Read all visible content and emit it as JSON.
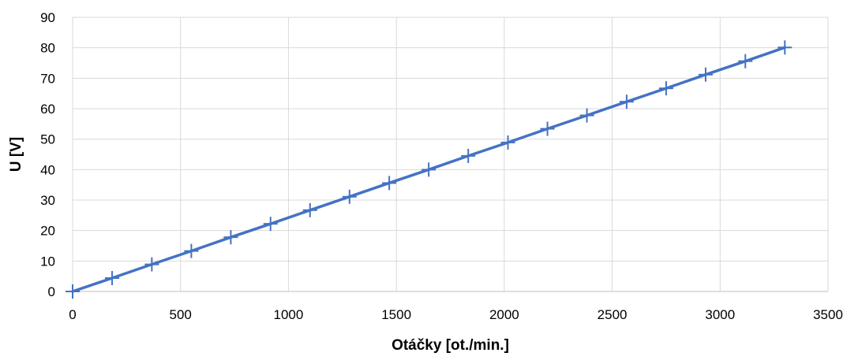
{
  "chart_data": {
    "type": "line",
    "title": "",
    "xlabel": "Otáčky [ot./min.]",
    "ylabel": "U [V]",
    "xlim": [
      0,
      3500
    ],
    "ylim": [
      0,
      90
    ],
    "x_ticks": [
      0,
      500,
      1000,
      1500,
      2000,
      2500,
      3000,
      3500
    ],
    "y_ticks": [
      0,
      10,
      20,
      30,
      40,
      50,
      60,
      70,
      80,
      90
    ],
    "grid": true,
    "legend": "none",
    "series": [
      {
        "marker": "plus",
        "color": "#4472C4",
        "x": [
          0,
          183,
          367,
          550,
          733,
          917,
          1100,
          1283,
          1467,
          1650,
          1833,
          2017,
          2200,
          2383,
          2567,
          2750,
          2933,
          3117,
          3300
        ],
        "y": [
          0,
          4.4,
          8.9,
          13.3,
          17.8,
          22.2,
          26.7,
          31.1,
          35.6,
          40.0,
          44.5,
          48.9,
          53.4,
          57.8,
          62.3,
          66.7,
          71.2,
          75.6,
          80.1
        ]
      }
    ]
  }
}
